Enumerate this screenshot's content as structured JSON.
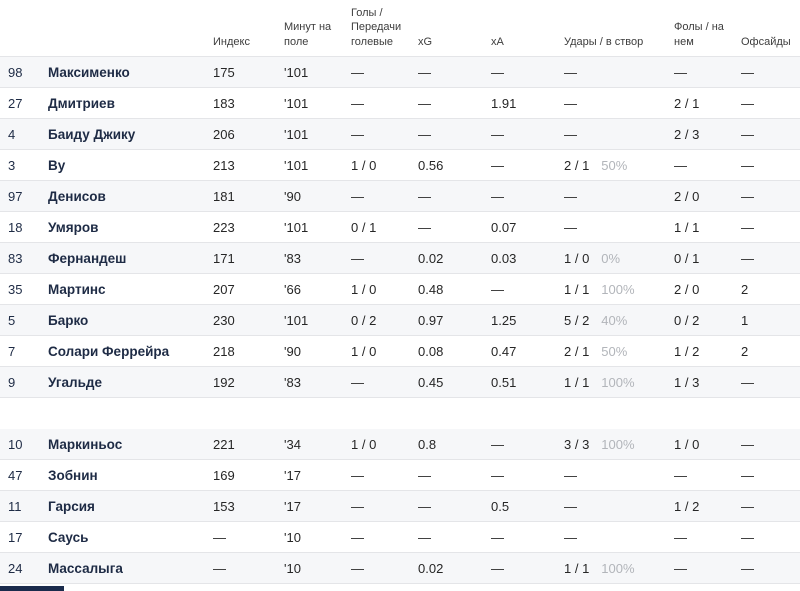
{
  "table": {
    "columns": [
      {
        "key": "number",
        "label": ""
      },
      {
        "key": "name",
        "label": ""
      },
      {
        "key": "index",
        "label": "Индекс"
      },
      {
        "key": "minutes",
        "label": "Минут на поле"
      },
      {
        "key": "goals",
        "label": "Голы / Передачи голевые"
      },
      {
        "key": "xg",
        "label": "xG"
      },
      {
        "key": "xa",
        "label": "xA"
      },
      {
        "key": "shots",
        "label": "Удары / в створ"
      },
      {
        "key": "fouls",
        "label": "Фолы / на нем"
      },
      {
        "key": "offsides",
        "label": "Офсайды"
      }
    ],
    "groups": [
      {
        "name": "starters",
        "rows": [
          {
            "number": "98",
            "name": "Максименко",
            "index": "175",
            "minutes": "'101",
            "goals": "—",
            "xg": "—",
            "xa": "—",
            "shots": "—",
            "shots_pct": "",
            "fouls": "—",
            "offsides": "—"
          },
          {
            "number": "27",
            "name": "Дмитриев",
            "index": "183",
            "minutes": "'101",
            "goals": "—",
            "xg": "—",
            "xa": "1.91",
            "shots": "—",
            "shots_pct": "",
            "fouls": "2 / 1",
            "offsides": "—"
          },
          {
            "number": "4",
            "name": "Баиду Джику",
            "index": "206",
            "minutes": "'101",
            "goals": "—",
            "xg": "—",
            "xa": "—",
            "shots": "—",
            "shots_pct": "",
            "fouls": "2 / 3",
            "offsides": "—"
          },
          {
            "number": "3",
            "name": "Ву",
            "index": "213",
            "minutes": "'101",
            "goals": "1 / 0",
            "xg": "0.56",
            "xa": "—",
            "shots": "2 / 1",
            "shots_pct": "50%",
            "fouls": "—",
            "offsides": "—"
          },
          {
            "number": "97",
            "name": "Денисов",
            "index": "181",
            "minutes": "'90",
            "goals": "—",
            "xg": "—",
            "xa": "—",
            "shots": "—",
            "shots_pct": "",
            "fouls": "2 / 0",
            "offsides": "—"
          },
          {
            "number": "18",
            "name": "Умяров",
            "index": "223",
            "minutes": "'101",
            "goals": "0 / 1",
            "xg": "—",
            "xa": "0.07",
            "shots": "—",
            "shots_pct": "",
            "fouls": "1 / 1",
            "offsides": "—"
          },
          {
            "number": "83",
            "name": "Фернандеш",
            "index": "171",
            "minutes": "'83",
            "goals": "—",
            "xg": "0.02",
            "xa": "0.03",
            "shots": "1 / 0",
            "shots_pct": "0%",
            "fouls": "0 / 1",
            "offsides": "—"
          },
          {
            "number": "35",
            "name": "Мартинс",
            "index": "207",
            "minutes": "'66",
            "goals": "1 / 0",
            "xg": "0.48",
            "xa": "—",
            "shots": "1 / 1",
            "shots_pct": "100%",
            "fouls": "2 / 0",
            "offsides": "2"
          },
          {
            "number": "5",
            "name": "Барко",
            "index": "230",
            "minutes": "'101",
            "goals": "0 / 2",
            "xg": "0.97",
            "xa": "1.25",
            "shots": "5 / 2",
            "shots_pct": "40%",
            "fouls": "0 / 2",
            "offsides": "1"
          },
          {
            "number": "7",
            "name": "Солари Феррейра",
            "index": "218",
            "minutes": "'90",
            "goals": "1 / 0",
            "xg": "0.08",
            "xa": "0.47",
            "shots": "2 / 1",
            "shots_pct": "50%",
            "fouls": "1 / 2",
            "offsides": "2"
          },
          {
            "number": "9",
            "name": "Угальде",
            "index": "192",
            "minutes": "'83",
            "goals": "—",
            "xg": "0.45",
            "xa": "0.51",
            "shots": "1 / 1",
            "shots_pct": "100%",
            "fouls": "1 / 3",
            "offsides": "—"
          }
        ]
      },
      {
        "name": "substitutes",
        "rows": [
          {
            "number": "10",
            "name": "Маркиньос",
            "index": "221",
            "minutes": "'34",
            "goals": "1 / 0",
            "xg": "0.8",
            "xa": "—",
            "shots": "3 / 3",
            "shots_pct": "100%",
            "fouls": "1 / 0",
            "offsides": "—"
          },
          {
            "number": "47",
            "name": "Зобнин",
            "index": "169",
            "minutes": "'17",
            "goals": "—",
            "xg": "—",
            "xa": "—",
            "shots": "—",
            "shots_pct": "",
            "fouls": "—",
            "offsides": "—"
          },
          {
            "number": "11",
            "name": "Гарсия",
            "index": "153",
            "minutes": "'17",
            "goals": "—",
            "xg": "—",
            "xa": "0.5",
            "shots": "—",
            "shots_pct": "",
            "fouls": "1 / 2",
            "offsides": "—"
          },
          {
            "number": "17",
            "name": "Саусь",
            "index": "—",
            "minutes": "'10",
            "goals": "—",
            "xg": "—",
            "xa": "—",
            "shots": "—",
            "shots_pct": "",
            "fouls": "—",
            "offsides": "—"
          },
          {
            "number": "24",
            "name": "Массалыга",
            "index": "—",
            "minutes": "'10",
            "goals": "—",
            "xg": "0.02",
            "xa": "—",
            "shots": "1 / 1",
            "shots_pct": "100%",
            "fouls": "—",
            "offsides": "—"
          }
        ]
      }
    ]
  },
  "colors": {
    "row_stripe": "#f6f7f9",
    "row_border": "#e4e5e8",
    "player_text": "#1e2b45",
    "value_text": "#262626",
    "header_text": "#3d3d3d",
    "percent_text": "#b2b5ba",
    "bottom_bar": "#1a2b4c"
  }
}
